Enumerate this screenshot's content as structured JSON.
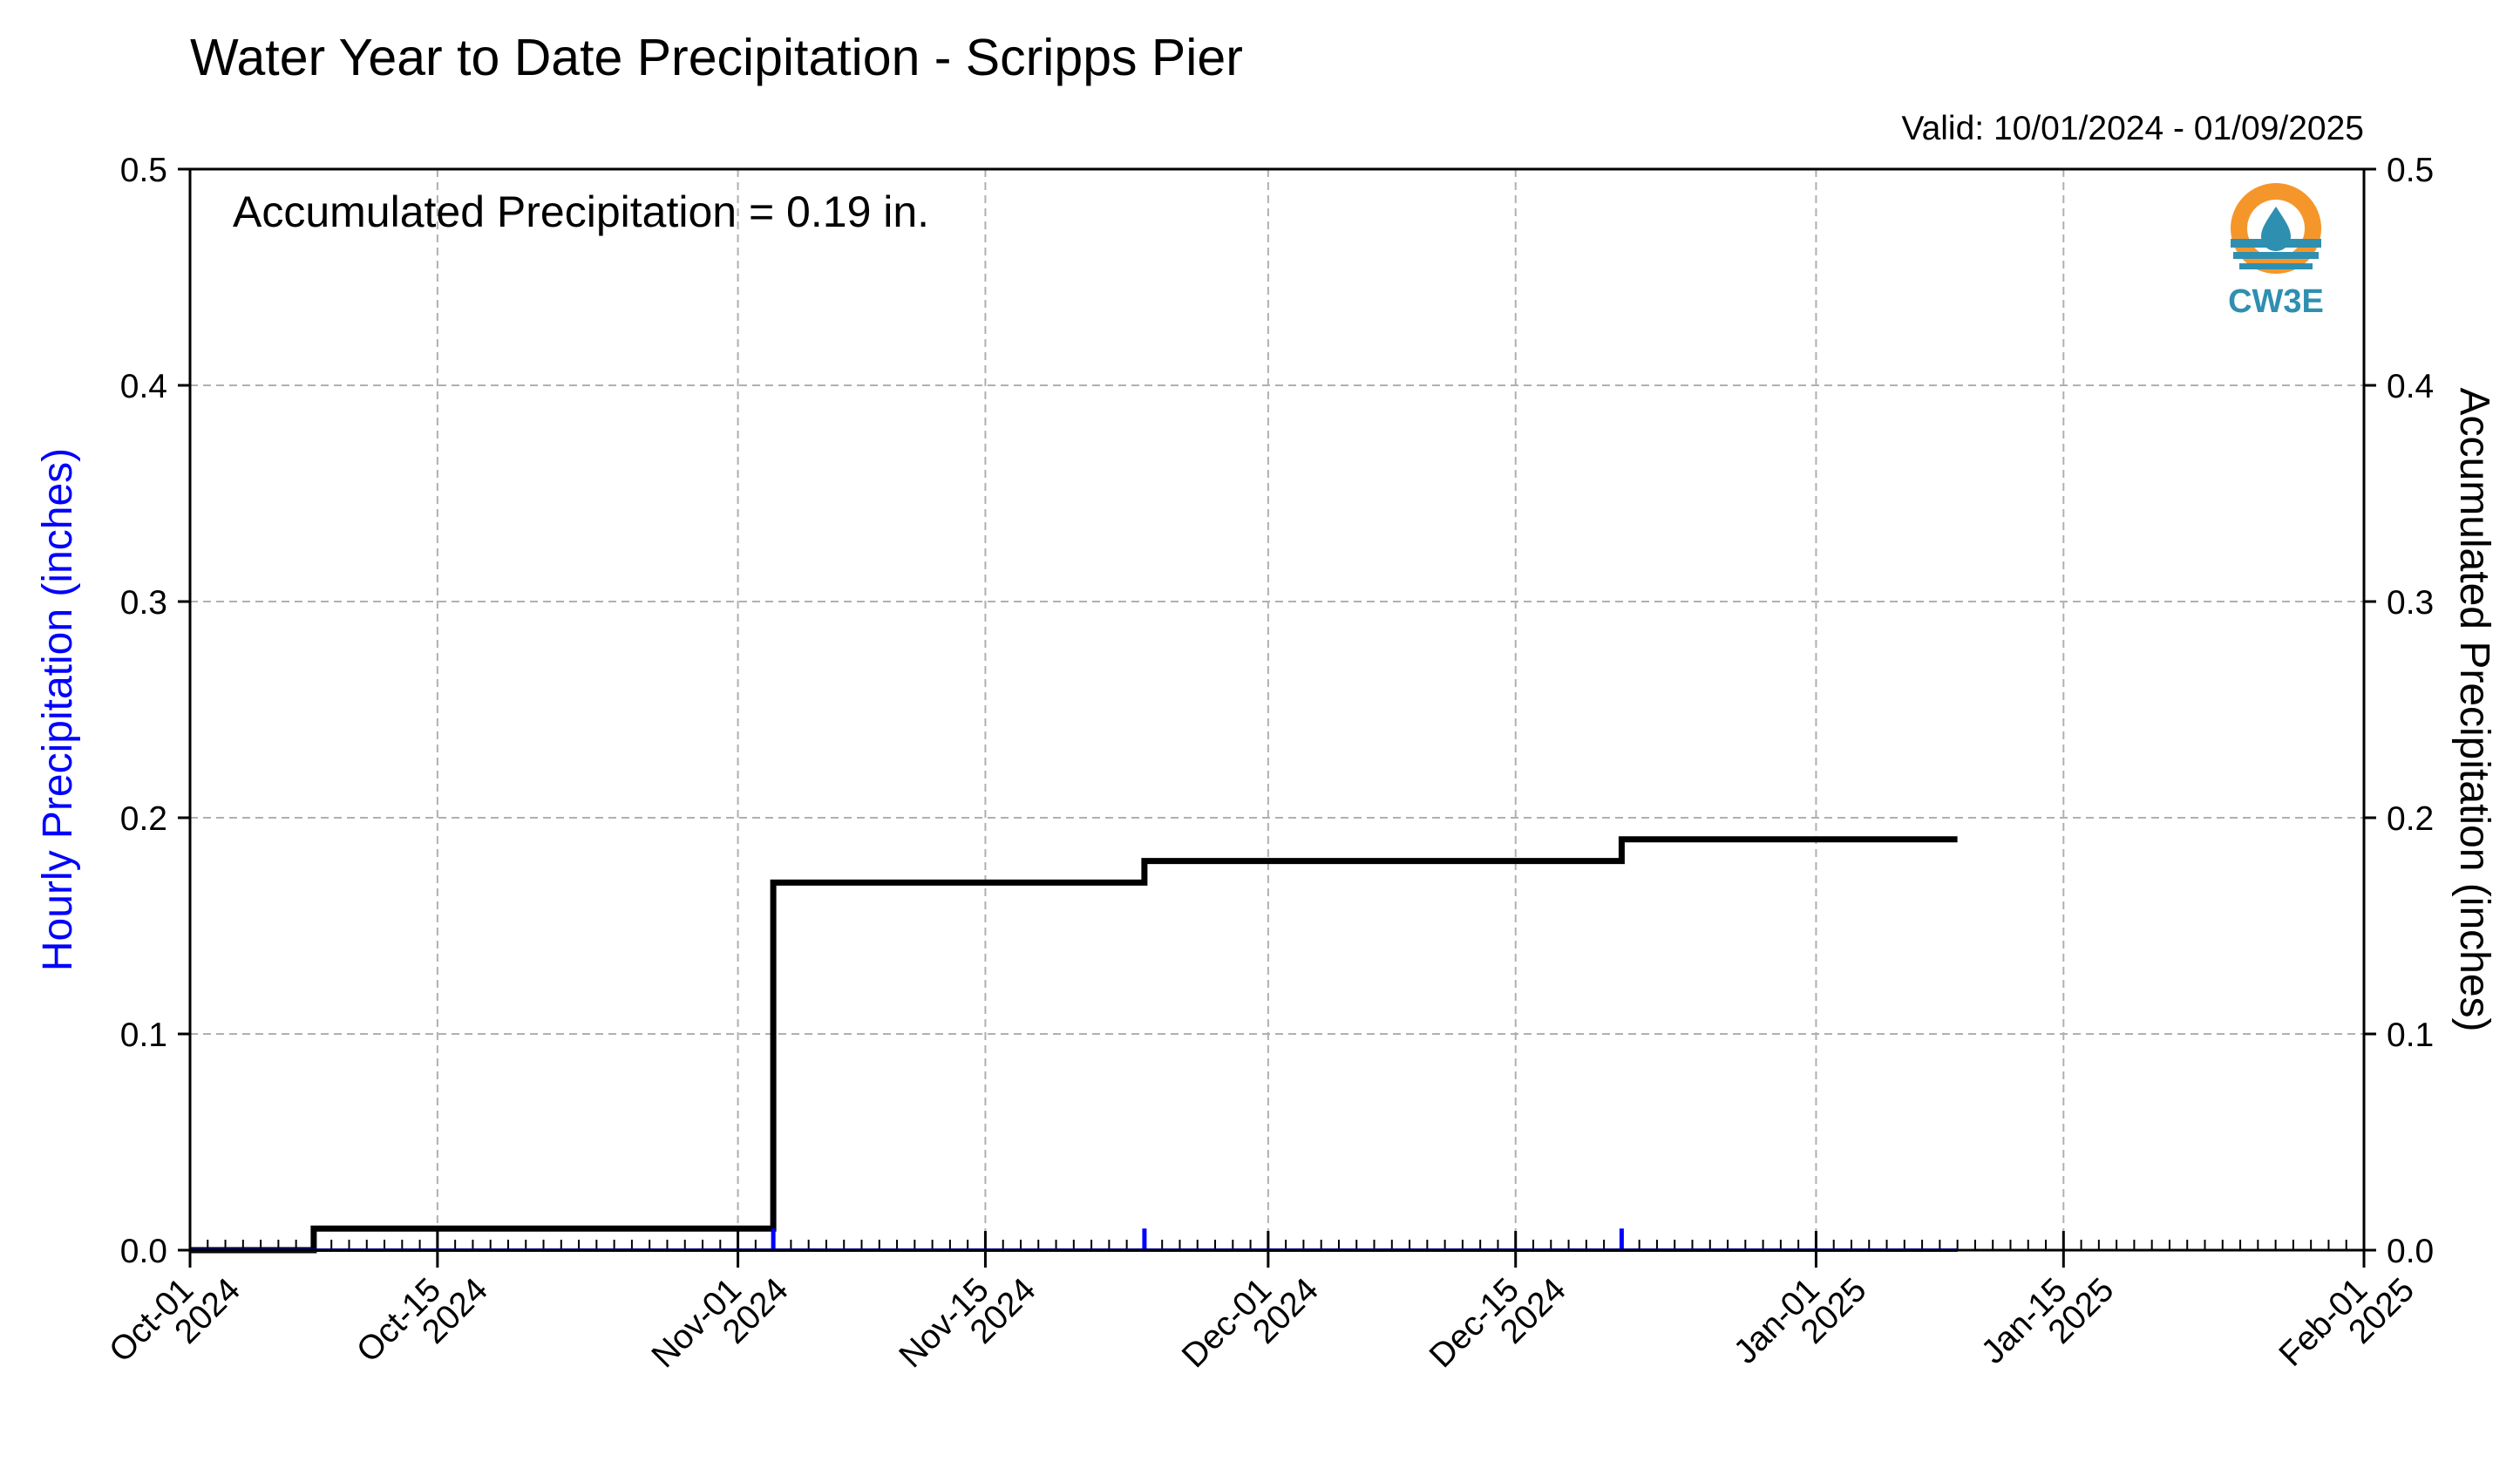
{
  "chart_data": {
    "type": "line",
    "title": "Water Year to Date Precipitation - Scripps Pier",
    "valid_label": "Valid: 10/01/2024 - 01/09/2025",
    "annotation": "Accumulated Precipitation = 0.19 in.",
    "logo_text": "CW3E",
    "y_left_label": "Hourly Precipitation (inches)",
    "y_right_label": "Accumulated Precipitation (inches)",
    "xlim": [
      "2024-10-01",
      "2025-02-01"
    ],
    "ylim": [
      0,
      0.5
    ],
    "y_ticks": [
      {
        "value": 0.0,
        "label": "0.0"
      },
      {
        "value": 0.1,
        "label": "0.1"
      },
      {
        "value": 0.2,
        "label": "0.2"
      },
      {
        "value": 0.3,
        "label": "0.3"
      },
      {
        "value": 0.4,
        "label": "0.4"
      },
      {
        "value": 0.5,
        "label": "0.5"
      }
    ],
    "x_ticks": [
      {
        "date": "2024-10-01",
        "line1": "Oct-01",
        "line2": "2024"
      },
      {
        "date": "2024-10-15",
        "line1": "Oct-15",
        "line2": "2024"
      },
      {
        "date": "2024-11-01",
        "line1": "Nov-01",
        "line2": "2024"
      },
      {
        "date": "2024-11-15",
        "line1": "Nov-15",
        "line2": "2024"
      },
      {
        "date": "2024-12-01",
        "line1": "Dec-01",
        "line2": "2024"
      },
      {
        "date": "2024-12-15",
        "line1": "Dec-15",
        "line2": "2024"
      },
      {
        "date": "2025-01-01",
        "line1": "Jan-01",
        "line2": "2025"
      },
      {
        "date": "2025-01-15",
        "line1": "Jan-15",
        "line2": "2025"
      },
      {
        "date": "2025-02-01",
        "line1": "Feb-01",
        "line2": "2025"
      }
    ],
    "grid": true,
    "series": [
      {
        "axis": "right",
        "color": "#000000",
        "style": "step",
        "points": [
          {
            "x": "2024-10-01",
            "y": 0.0
          },
          {
            "x": "2024-10-08",
            "y": 0.0
          },
          {
            "x": "2024-10-08",
            "y": 0.01
          },
          {
            "x": "2024-11-03",
            "y": 0.01
          },
          {
            "x": "2024-11-03",
            "y": 0.17
          },
          {
            "x": "2024-11-24",
            "y": 0.17
          },
          {
            "x": "2024-11-24",
            "y": 0.18
          },
          {
            "x": "2024-12-21",
            "y": 0.18
          },
          {
            "x": "2024-12-21",
            "y": 0.19
          },
          {
            "x": "2025-01-09",
            "y": 0.19
          }
        ]
      },
      {
        "axis": "left",
        "color": "#0000ff",
        "style": "bars",
        "baseline_end": "2025-01-09",
        "bars": [
          {
            "x": "2024-11-03",
            "y": 0.01
          },
          {
            "x": "2024-11-24",
            "y": 0.01
          },
          {
            "x": "2024-12-21",
            "y": 0.01
          }
        ]
      }
    ]
  }
}
